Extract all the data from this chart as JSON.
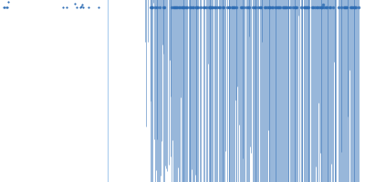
{
  "dot_color": "#2e6db4",
  "vline_color": "#aaccee",
  "vline_x": 0.165,
  "background": "#ffffff",
  "figsize": [
    4.0,
    2.0
  ],
  "dpi": 100
}
